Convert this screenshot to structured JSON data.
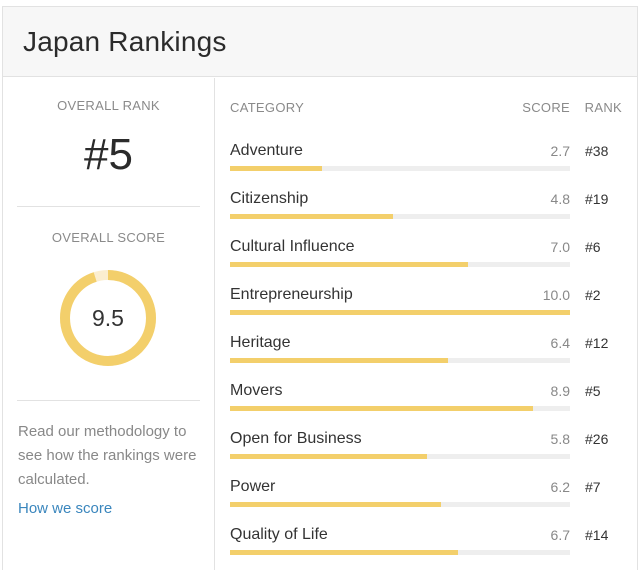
{
  "header": {
    "title": "Japan Rankings"
  },
  "overview": {
    "overall_rank_label": "Overall Rank",
    "overall_rank": "#5",
    "overall_score_label": "Overall Score",
    "overall_score": "9.5",
    "overall_score_fraction": 0.95,
    "methodology_text": "Read our methodology to see how the rankings were calculated.",
    "methodology_link": "How we score"
  },
  "colors": {
    "bar_fill": "#f3cf6b",
    "bar_track": "#eeeeee",
    "gauge_track": "#fbeed0",
    "link": "#3a86bd"
  },
  "table": {
    "headers": {
      "category": "Category",
      "score": "Score",
      "rank": "Rank"
    },
    "max_score": 10,
    "rows": [
      {
        "category": "Adventure",
        "score": "2.7",
        "rank": "#38"
      },
      {
        "category": "Citizenship",
        "score": "4.8",
        "rank": "#19"
      },
      {
        "category": "Cultural Influence",
        "score": "7.0",
        "rank": "#6"
      },
      {
        "category": "Entrepreneurship",
        "score": "10.0",
        "rank": "#2"
      },
      {
        "category": "Heritage",
        "score": "6.4",
        "rank": "#12"
      },
      {
        "category": "Movers",
        "score": "8.9",
        "rank": "#5"
      },
      {
        "category": "Open for Business",
        "score": "5.8",
        "rank": "#26"
      },
      {
        "category": "Power",
        "score": "6.2",
        "rank": "#7"
      },
      {
        "category": "Quality of Life",
        "score": "6.7",
        "rank": "#14"
      }
    ]
  }
}
